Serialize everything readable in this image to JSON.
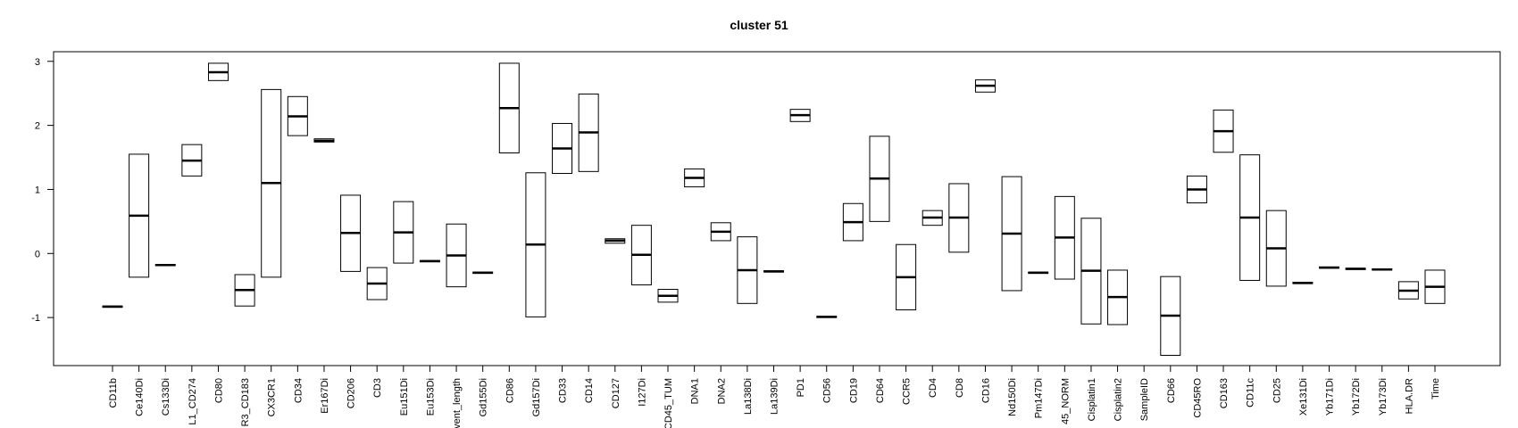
{
  "chart_data": {
    "type": "box",
    "title": "cluster 51",
    "xlabel": "",
    "ylabel": "",
    "ylim": [
      -1.75,
      3.15
    ],
    "yticks": [
      -1,
      0,
      1,
      2,
      3
    ],
    "ytick_labels": [
      "-1",
      "0",
      "1",
      "2",
      "3"
    ],
    "grid": false,
    "categories": [
      "CD11b",
      "Ce140Di",
      "Cs133Di",
      "L1_CD274",
      "CD80",
      "R3_CD183",
      "CX3CR1",
      "CD34",
      "Er167Di",
      "CD206",
      "CD3",
      "Eu151Di",
      "Eu153Di",
      "vent_length",
      "Gd155Di",
      "CD86",
      "Gd157Di",
      "CD33",
      "CD14",
      "CD127",
      "I127Di",
      "CD45_TUM",
      "DNA1",
      "DNA2",
      "La138Di",
      "La139Di",
      "PD1",
      "CD56",
      "CD19",
      "CD64",
      "CCR5",
      "CD4",
      "CD8",
      "CD16",
      "Nd150Di",
      "Pm147Di",
      "45_NORM",
      "Cisplatin1",
      "Cisplatin2",
      "SampleID",
      "CD66",
      "CD45RO",
      "CD163",
      "CD11c",
      "CD25",
      "Xe131Di",
      "Yb171Di",
      "Yb172Di",
      "Yb173Di",
      "HLA.DR",
      "Time"
    ],
    "boxes": [
      {
        "q1": -0.84,
        "median": -0.83,
        "q3": -0.82
      },
      {
        "q1": -0.37,
        "median": 0.59,
        "q3": 1.55
      },
      {
        "q1": -0.19,
        "median": -0.18,
        "q3": -0.17
      },
      {
        "q1": 1.21,
        "median": 1.45,
        "q3": 1.7
      },
      {
        "q1": 2.7,
        "median": 2.83,
        "q3": 2.97
      },
      {
        "q1": -0.82,
        "median": -0.57,
        "q3": -0.33
      },
      {
        "q1": -0.37,
        "median": 1.1,
        "q3": 2.56
      },
      {
        "q1": 1.84,
        "median": 2.14,
        "q3": 2.45
      },
      {
        "q1": 1.74,
        "median": 1.76,
        "q3": 1.79
      },
      {
        "q1": -0.28,
        "median": 0.32,
        "q3": 0.91
      },
      {
        "q1": -0.72,
        "median": -0.47,
        "q3": -0.22
      },
      {
        "q1": -0.15,
        "median": 0.33,
        "q3": 0.81
      },
      {
        "q1": -0.13,
        "median": -0.12,
        "q3": -0.11
      },
      {
        "q1": -0.52,
        "median": -0.03,
        "q3": 0.46
      },
      {
        "q1": -0.31,
        "median": -0.3,
        "q3": -0.29
      },
      {
        "q1": 1.57,
        "median": 2.27,
        "q3": 2.97
      },
      {
        "q1": -0.99,
        "median": 0.14,
        "q3": 1.26
      },
      {
        "q1": 1.25,
        "median": 1.64,
        "q3": 2.03
      },
      {
        "q1": 1.28,
        "median": 1.89,
        "q3": 2.49
      },
      {
        "q1": 0.16,
        "median": 0.2,
        "q3": 0.23
      },
      {
        "q1": -0.49,
        "median": -0.02,
        "q3": 0.44
      },
      {
        "q1": -0.76,
        "median": -0.66,
        "q3": -0.56
      },
      {
        "q1": 1.04,
        "median": 1.18,
        "q3": 1.32
      },
      {
        "q1": 0.2,
        "median": 0.34,
        "q3": 0.48
      },
      {
        "q1": -0.78,
        "median": -0.26,
        "q3": 0.26
      },
      {
        "q1": -0.29,
        "median": -0.28,
        "q3": -0.27
      },
      {
        "q1": 2.06,
        "median": 2.16,
        "q3": 2.25
      },
      {
        "q1": -1.0,
        "median": -0.99,
        "q3": -0.98
      },
      {
        "q1": 0.2,
        "median": 0.49,
        "q3": 0.78
      },
      {
        "q1": 0.5,
        "median": 1.17,
        "q3": 1.83
      },
      {
        "q1": -0.88,
        "median": -0.37,
        "q3": 0.14
      },
      {
        "q1": 0.44,
        "median": 0.56,
        "q3": 0.67
      },
      {
        "q1": 0.02,
        "median": 0.56,
        "q3": 1.09
      },
      {
        "q1": 2.52,
        "median": 2.62,
        "q3": 2.71
      },
      {
        "q1": -0.58,
        "median": 0.31,
        "q3": 1.2
      },
      {
        "q1": -0.31,
        "median": -0.3,
        "q3": -0.29
      },
      {
        "q1": -0.4,
        "median": 0.25,
        "q3": 0.89
      },
      {
        "q1": -1.1,
        "median": -0.27,
        "q3": 0.55
      },
      {
        "q1": -1.11,
        "median": -0.68,
        "q3": -0.26
      },
      null,
      {
        "q1": -1.59,
        "median": -0.97,
        "q3": -0.36
      },
      {
        "q1": 0.79,
        "median": 1.0,
        "q3": 1.21
      },
      {
        "q1": 1.58,
        "median": 1.91,
        "q3": 2.24
      },
      {
        "q1": -0.42,
        "median": 0.56,
        "q3": 1.54
      },
      {
        "q1": -0.51,
        "median": 0.08,
        "q3": 0.67
      },
      {
        "q1": -0.47,
        "median": -0.46,
        "q3": -0.45
      },
      {
        "q1": -0.23,
        "median": -0.22,
        "q3": -0.21
      },
      {
        "q1": -0.25,
        "median": -0.24,
        "q3": -0.23
      },
      {
        "q1": -0.26,
        "median": -0.25,
        "q3": -0.24
      },
      {
        "q1": -0.71,
        "median": -0.58,
        "q3": -0.44
      },
      {
        "q1": -0.78,
        "median": -0.52,
        "q3": -0.26
      }
    ]
  }
}
